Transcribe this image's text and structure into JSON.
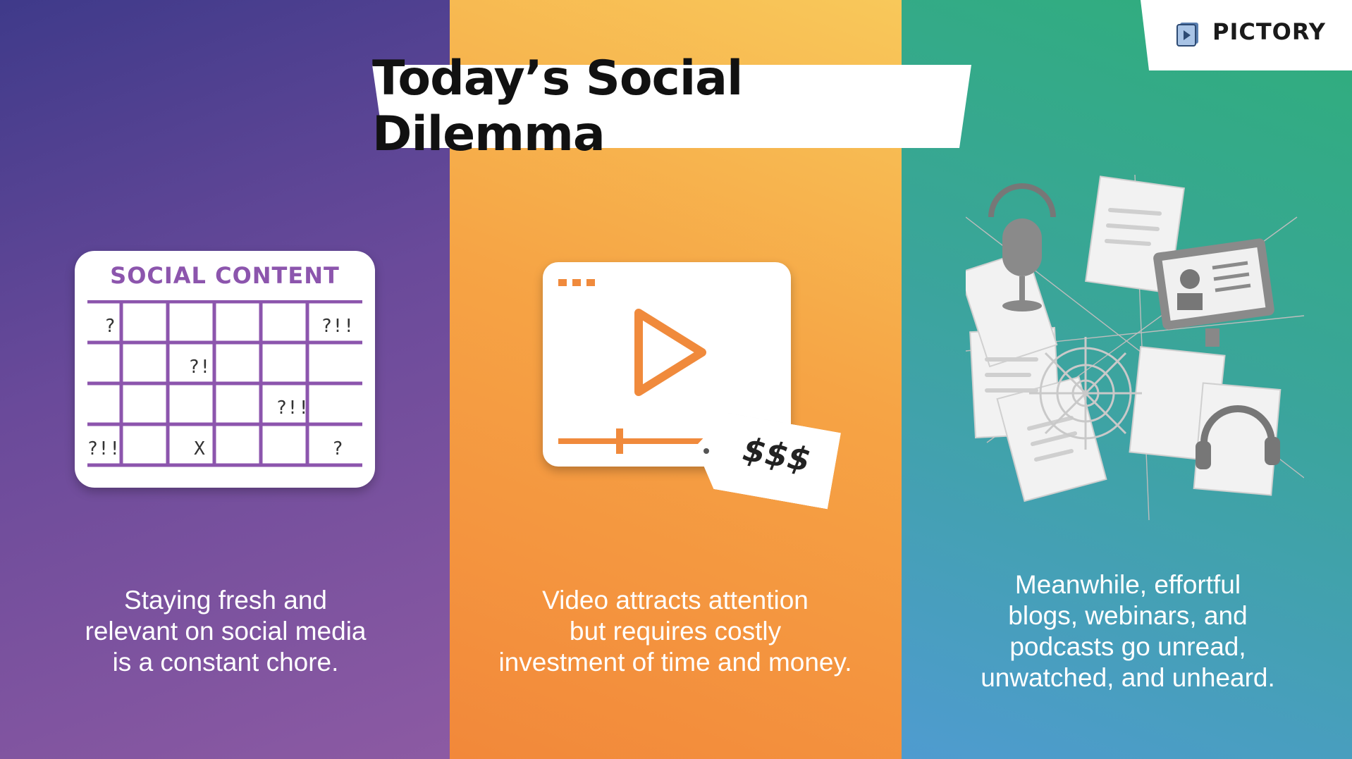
{
  "title": "Today’s Social Dilemma",
  "brand": {
    "name": "PICTORY",
    "icon": "pictory-logo-icon"
  },
  "colors": {
    "panel_purple": "#6a4a9a",
    "panel_orange": "#f6a445",
    "panel_teal": "#3aa59a",
    "accent_purple": "#8c55ad",
    "accent_orange": "#f08a3c"
  },
  "panels": [
    {
      "illustration": {
        "heading": "SOCIAL CONTENT",
        "marks": {
          "r0c0": "?",
          "r0c5": "?!!",
          "r1c2": "?!",
          "r2c4": "?!!",
          "r3c0": "?!!",
          "r3c2": "X",
          "r3c5": "?"
        }
      },
      "caption": [
        "Staying fresh and",
        "relevant on social media",
        "is a constant chore."
      ]
    },
    {
      "illustration": {
        "price_tag": "$$$",
        "icon": "video-player-icon"
      },
      "caption": [
        "Video attracts attention",
        "but requires costly",
        "investment of time and money."
      ]
    },
    {
      "illustration": {
        "icon": "abandoned-content-web-icon"
      },
      "caption": [
        "Meanwhile, effortful",
        "blogs, webinars, and",
        "podcasts go unread,",
        "unwatched, and unheard."
      ]
    }
  ]
}
